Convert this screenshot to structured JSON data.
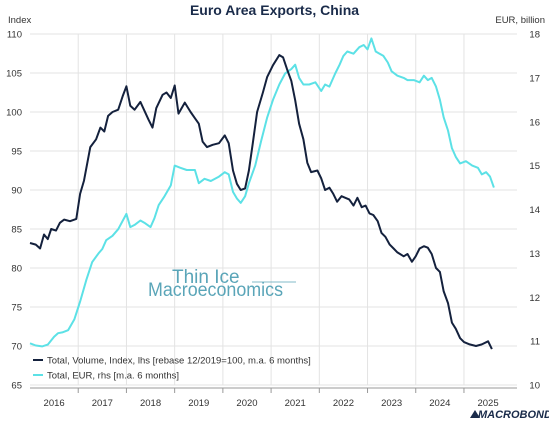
{
  "chart_data": {
    "type": "line",
    "title": "Euro Area Exports, China",
    "y_left_label": "Index",
    "y_right_label": "EUR, billion",
    "y_left_lim": [
      65,
      110
    ],
    "y_left_ticks": [
      65,
      70,
      75,
      80,
      85,
      90,
      95,
      100,
      105,
      110
    ],
    "y_right_lim": [
      10,
      18
    ],
    "y_right_ticks": [
      10,
      11,
      12,
      13,
      14,
      15,
      16,
      17,
      18
    ],
    "x_lim": [
      2015.5,
      2025.6
    ],
    "x_ticks": [
      {
        "label": "2016",
        "at": 2016.0
      },
      {
        "label": "2017",
        "at": 2017.0
      },
      {
        "label": "2018",
        "at": 2018.0
      },
      {
        "label": "2019",
        "at": 2019.0
      },
      {
        "label": "2020",
        "at": 2020.0
      },
      {
        "label": "2021",
        "at": 2021.0
      },
      {
        "label": "2022",
        "at": 2022.0
      },
      {
        "label": "2023",
        "at": 2023.0
      },
      {
        "label": "2024",
        "at": 2024.0
      },
      {
        "label": "2025",
        "at": 2025.0
      }
    ],
    "x_separators": [
      2016.5,
      2017.5,
      2018.5,
      2019.5,
      2020.5,
      2021.5,
      2022.5,
      2023.5,
      2024.5
    ],
    "gridlines": true,
    "legend_position": "bottom-left",
    "series": [
      {
        "name": "Total, Volume, Index, lhs [rebase 12/2019=100, m.a. 6 months]",
        "axis": "left",
        "color": "#14213d",
        "points": [
          [
            2015.5,
            83.2
          ],
          [
            2015.62,
            83.0
          ],
          [
            2015.71,
            82.5
          ],
          [
            2015.79,
            84.3
          ],
          [
            2015.87,
            83.7
          ],
          [
            2015.94,
            85.0
          ],
          [
            2016.04,
            84.8
          ],
          [
            2016.12,
            85.8
          ],
          [
            2016.21,
            86.2
          ],
          [
            2016.33,
            86.0
          ],
          [
            2016.46,
            86.3
          ],
          [
            2016.54,
            89.5
          ],
          [
            2016.62,
            91.2
          ],
          [
            2016.75,
            95.5
          ],
          [
            2016.87,
            96.5
          ],
          [
            2016.96,
            98.0
          ],
          [
            2017.04,
            97.5
          ],
          [
            2017.12,
            99.5
          ],
          [
            2017.21,
            100.0
          ],
          [
            2017.33,
            100.3
          ],
          [
            2017.42,
            102.0
          ],
          [
            2017.5,
            103.3
          ],
          [
            2017.58,
            100.8
          ],
          [
            2017.67,
            100.3
          ],
          [
            2017.79,
            101.3
          ],
          [
            2017.87,
            100.2
          ],
          [
            2017.96,
            99.0
          ],
          [
            2018.04,
            98.0
          ],
          [
            2018.12,
            100.5
          ],
          [
            2018.25,
            102.2
          ],
          [
            2018.33,
            102.5
          ],
          [
            2018.42,
            101.8
          ],
          [
            2018.5,
            103.4
          ],
          [
            2018.58,
            99.8
          ],
          [
            2018.71,
            101.2
          ],
          [
            2018.83,
            100.0
          ],
          [
            2018.92,
            99.2
          ],
          [
            2019.0,
            98.5
          ],
          [
            2019.08,
            96.2
          ],
          [
            2019.17,
            95.5
          ],
          [
            2019.29,
            95.8
          ],
          [
            2019.42,
            96.0
          ],
          [
            2019.54,
            97.0
          ],
          [
            2019.62,
            96.0
          ],
          [
            2019.71,
            92.5
          ],
          [
            2019.79,
            90.8
          ],
          [
            2019.87,
            90.0
          ],
          [
            2019.96,
            90.2
          ],
          [
            2020.04,
            92.5
          ],
          [
            2020.12,
            96.0
          ],
          [
            2020.21,
            100.0
          ],
          [
            2020.33,
            102.5
          ],
          [
            2020.42,
            104.5
          ],
          [
            2020.54,
            106.0
          ],
          [
            2020.67,
            107.3
          ],
          [
            2020.75,
            107.0
          ],
          [
            2020.83,
            105.5
          ],
          [
            2020.92,
            104.0
          ],
          [
            2021.0,
            101.5
          ],
          [
            2021.08,
            98.5
          ],
          [
            2021.17,
            96.5
          ],
          [
            2021.25,
            93.5
          ],
          [
            2021.33,
            92.3
          ],
          [
            2021.46,
            92.5
          ],
          [
            2021.54,
            91.5
          ],
          [
            2021.62,
            90.0
          ],
          [
            2021.71,
            90.3
          ],
          [
            2021.79,
            89.5
          ],
          [
            2021.87,
            88.5
          ],
          [
            2021.96,
            89.2
          ],
          [
            2022.04,
            89.0
          ],
          [
            2022.12,
            88.8
          ],
          [
            2022.21,
            88.0
          ],
          [
            2022.29,
            89.0
          ],
          [
            2022.38,
            87.8
          ],
          [
            2022.46,
            88.0
          ],
          [
            2022.54,
            87.0
          ],
          [
            2022.62,
            86.8
          ],
          [
            2022.71,
            86.0
          ],
          [
            2022.79,
            84.5
          ],
          [
            2022.87,
            84.0
          ],
          [
            2022.96,
            83.0
          ],
          [
            2023.04,
            82.5
          ],
          [
            2023.12,
            82.0
          ],
          [
            2023.25,
            81.5
          ],
          [
            2023.33,
            81.8
          ],
          [
            2023.42,
            80.8
          ],
          [
            2023.5,
            81.5
          ],
          [
            2023.58,
            82.5
          ],
          [
            2023.67,
            82.8
          ],
          [
            2023.75,
            82.6
          ],
          [
            2023.83,
            81.8
          ],
          [
            2023.92,
            80.0
          ],
          [
            2024.0,
            79.5
          ],
          [
            2024.08,
            77.0
          ],
          [
            2024.17,
            75.5
          ],
          [
            2024.25,
            73.0
          ],
          [
            2024.33,
            72.2
          ],
          [
            2024.42,
            71.0
          ],
          [
            2024.5,
            70.5
          ],
          [
            2024.62,
            70.2
          ],
          [
            2024.75,
            70.0
          ],
          [
            2024.87,
            70.2
          ],
          [
            2025.0,
            70.6
          ],
          [
            2025.08,
            69.6
          ]
        ]
      },
      {
        "name": "Total, EUR, rhs [m.a. 6 months]",
        "axis": "right",
        "color": "#5ce1e6",
        "points": [
          [
            2015.5,
            10.95
          ],
          [
            2015.62,
            10.9
          ],
          [
            2015.75,
            10.88
          ],
          [
            2015.87,
            10.92
          ],
          [
            2016.0,
            11.1
          ],
          [
            2016.08,
            11.18
          ],
          [
            2016.17,
            11.2
          ],
          [
            2016.29,
            11.25
          ],
          [
            2016.42,
            11.5
          ],
          [
            2016.54,
            11.9
          ],
          [
            2016.67,
            12.4
          ],
          [
            2016.79,
            12.8
          ],
          [
            2016.92,
            13.0
          ],
          [
            2017.0,
            13.1
          ],
          [
            2017.08,
            13.3
          ],
          [
            2017.21,
            13.4
          ],
          [
            2017.33,
            13.55
          ],
          [
            2017.5,
            13.9
          ],
          [
            2017.58,
            13.6
          ],
          [
            2017.67,
            13.65
          ],
          [
            2017.79,
            13.75
          ],
          [
            2017.87,
            13.7
          ],
          [
            2018.0,
            13.6
          ],
          [
            2018.08,
            13.8
          ],
          [
            2018.17,
            14.1
          ],
          [
            2018.29,
            14.3
          ],
          [
            2018.42,
            14.55
          ],
          [
            2018.5,
            15.0
          ],
          [
            2018.62,
            14.95
          ],
          [
            2018.75,
            14.9
          ],
          [
            2018.92,
            14.9
          ],
          [
            2019.0,
            14.6
          ],
          [
            2019.12,
            14.7
          ],
          [
            2019.25,
            14.65
          ],
          [
            2019.42,
            14.75
          ],
          [
            2019.54,
            14.85
          ],
          [
            2019.62,
            14.8
          ],
          [
            2019.71,
            14.4
          ],
          [
            2019.79,
            14.25
          ],
          [
            2019.87,
            14.15
          ],
          [
            2019.96,
            14.3
          ],
          [
            2020.04,
            14.6
          ],
          [
            2020.17,
            15.0
          ],
          [
            2020.29,
            15.55
          ],
          [
            2020.42,
            16.1
          ],
          [
            2020.54,
            16.5
          ],
          [
            2020.67,
            16.85
          ],
          [
            2020.79,
            17.1
          ],
          [
            2020.92,
            17.2
          ],
          [
            2021.0,
            17.3
          ],
          [
            2021.08,
            17.0
          ],
          [
            2021.17,
            16.85
          ],
          [
            2021.29,
            16.85
          ],
          [
            2021.42,
            16.9
          ],
          [
            2021.54,
            16.7
          ],
          [
            2021.62,
            16.85
          ],
          [
            2021.71,
            16.8
          ],
          [
            2021.83,
            17.1
          ],
          [
            2021.92,
            17.3
          ],
          [
            2022.0,
            17.5
          ],
          [
            2022.08,
            17.6
          ],
          [
            2022.21,
            17.55
          ],
          [
            2022.33,
            17.7
          ],
          [
            2022.42,
            17.75
          ],
          [
            2022.5,
            17.65
          ],
          [
            2022.58,
            17.9
          ],
          [
            2022.67,
            17.6
          ],
          [
            2022.75,
            17.55
          ],
          [
            2022.83,
            17.5
          ],
          [
            2022.92,
            17.35
          ],
          [
            2023.0,
            17.15
          ],
          [
            2023.12,
            17.05
          ],
          [
            2023.25,
            17.0
          ],
          [
            2023.33,
            16.95
          ],
          [
            2023.46,
            16.95
          ],
          [
            2023.58,
            16.9
          ],
          [
            2023.67,
            17.05
          ],
          [
            2023.75,
            16.95
          ],
          [
            2023.83,
            17.0
          ],
          [
            2023.92,
            16.8
          ],
          [
            2024.0,
            16.5
          ],
          [
            2024.08,
            16.1
          ],
          [
            2024.17,
            15.8
          ],
          [
            2024.25,
            15.4
          ],
          [
            2024.33,
            15.2
          ],
          [
            2024.42,
            15.05
          ],
          [
            2024.54,
            15.1
          ],
          [
            2024.67,
            15.0
          ],
          [
            2024.79,
            14.95
          ],
          [
            2024.87,
            14.8
          ],
          [
            2024.96,
            14.85
          ],
          [
            2025.04,
            14.75
          ],
          [
            2025.12,
            14.5
          ]
        ]
      }
    ]
  },
  "watermark": {
    "line1": "Thin Ice",
    "line2": "Macroeconomics"
  },
  "brand": "MACROBOND"
}
